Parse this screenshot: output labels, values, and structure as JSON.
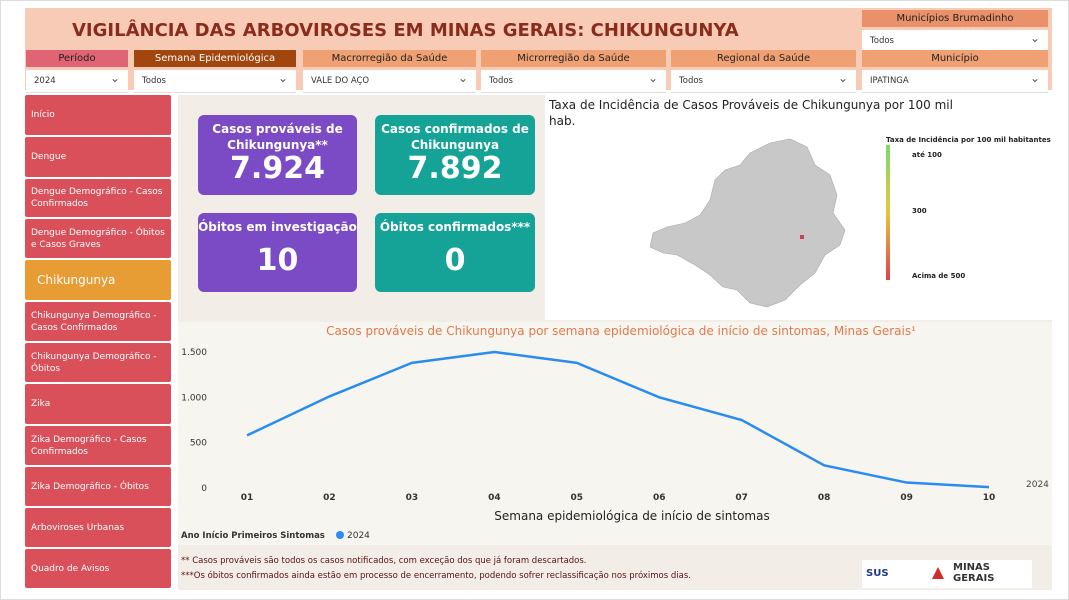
{
  "header": {
    "title": "VIGILÂNCIA DAS ARBOVIROSES EM MINAS GERAIS:  CHIKUNGUNYA"
  },
  "filters": [
    {
      "label": "Municípios Brumadinho",
      "value": "Todos"
    },
    {
      "label": "Período",
      "value": "2024"
    },
    {
      "label": "Semana Epidemiológica",
      "value": "Todos"
    },
    {
      "label": "Macrorregião da Saúde",
      "value": "VALE DO AÇO"
    },
    {
      "label": "Microrregião da Saúde",
      "value": "Todos"
    },
    {
      "label": "Regional da Saúde",
      "value": "Todos"
    },
    {
      "label": "Município",
      "value": "IPATINGA"
    }
  ],
  "nav": [
    "Início",
    "Dengue",
    "Dengue Demográfico - Casos Confirmados",
    "Dengue Demográfico - Óbitos e Casos Graves",
    "Chikungunya",
    "Chikungunya Demográfico - Casos Confirmados",
    "Chikungunya Demográfico - Óbitos",
    "Zika",
    "Zika Demográfico - Casos Confirmados",
    "Zika Demográfico - Óbitos",
    "Arboviroses Urbanas",
    "Quadro de Avisos"
  ],
  "kpis": [
    {
      "label": "Casos prováveis de Chikungunya**",
      "value": "7.924"
    },
    {
      "label": "Casos confirmados de Chikungunya",
      "value": "7.892"
    },
    {
      "label": "Óbitos em investigação",
      "value": "10"
    },
    {
      "label": "Óbitos confirmados***",
      "value": "0"
    }
  ],
  "map": {
    "title": "Taxa de Incidência de Casos Prováveis de Chikungunya por 100 mil hab.",
    "legend_title": "Taxa de Incidência por 100 mil habitantes",
    "legend_labels": [
      "até 100",
      "300",
      "Acima de 500"
    ]
  },
  "chart_data": {
    "type": "line",
    "title": "Casos prováveis de Chikungunya por semana epidemiológica de início de sintomas, Minas Gerais¹",
    "x_label": "Semana epidemiológica de início de sintomas",
    "legend_title": "Ano Início Primeiros Sintomas",
    "categories": [
      "01",
      "02",
      "03",
      "04",
      "05",
      "06",
      "07",
      "08",
      "09",
      "10"
    ],
    "series": [
      {
        "name": "2024",
        "color": "#2a8cf0",
        "values": [
          580,
          1010,
          1380,
          1500,
          1380,
          1000,
          750,
          250,
          60,
          10
        ]
      }
    ],
    "ylim": [
      0,
      1500
    ],
    "yticks": [
      0,
      500,
      {
        "value": 1000,
        "label": "1.000"
      },
      {
        "value": 1500,
        "label": "1.500"
      }
    ]
  },
  "footnotes": [
    "** Casos prováveis são todos os casos notificados, com exceção dos que já foram descartados.",
    "***Os óbitos confirmados ainda estão em processo de encerramento, podendo sofrer reclassificação nos próximos dias."
  ],
  "logos": [
    "SUS",
    "MINAS",
    "GERAIS"
  ]
}
